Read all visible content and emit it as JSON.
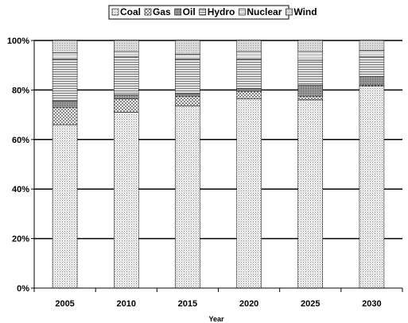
{
  "chart_data": {
    "type": "bar",
    "stacked": true,
    "percent": true,
    "xlabel": "Year",
    "ylabel": "",
    "ylim": [
      0,
      100
    ],
    "yticks": [
      "0%",
      "20%",
      "40%",
      "60%",
      "80%",
      "100%"
    ],
    "categories": [
      "2005",
      "2010",
      "2015",
      "2020",
      "2025",
      "2030"
    ],
    "legend_position": "top",
    "grid": "horizontal",
    "series": [
      {
        "name": "Coal",
        "values": [
          66,
          71,
          73.5,
          76.5,
          76,
          81.5
        ]
      },
      {
        "name": "Gas",
        "values": [
          7,
          5.5,
          4,
          3,
          1.5,
          0.5
        ]
      },
      {
        "name": "Oil",
        "values": [
          2.5,
          1.5,
          1,
          1,
          4.5,
          3.5
        ]
      },
      {
        "name": "Hydro",
        "values": [
          17,
          15.5,
          14,
          12,
          10,
          8
        ]
      },
      {
        "name": "Nuclear",
        "values": [
          2.5,
          2,
          2,
          3,
          3.5,
          2.5
        ]
      },
      {
        "name": "Wind",
        "values": [
          5,
          4.5,
          5.5,
          4.5,
          4.5,
          4
        ]
      }
    ]
  }
}
